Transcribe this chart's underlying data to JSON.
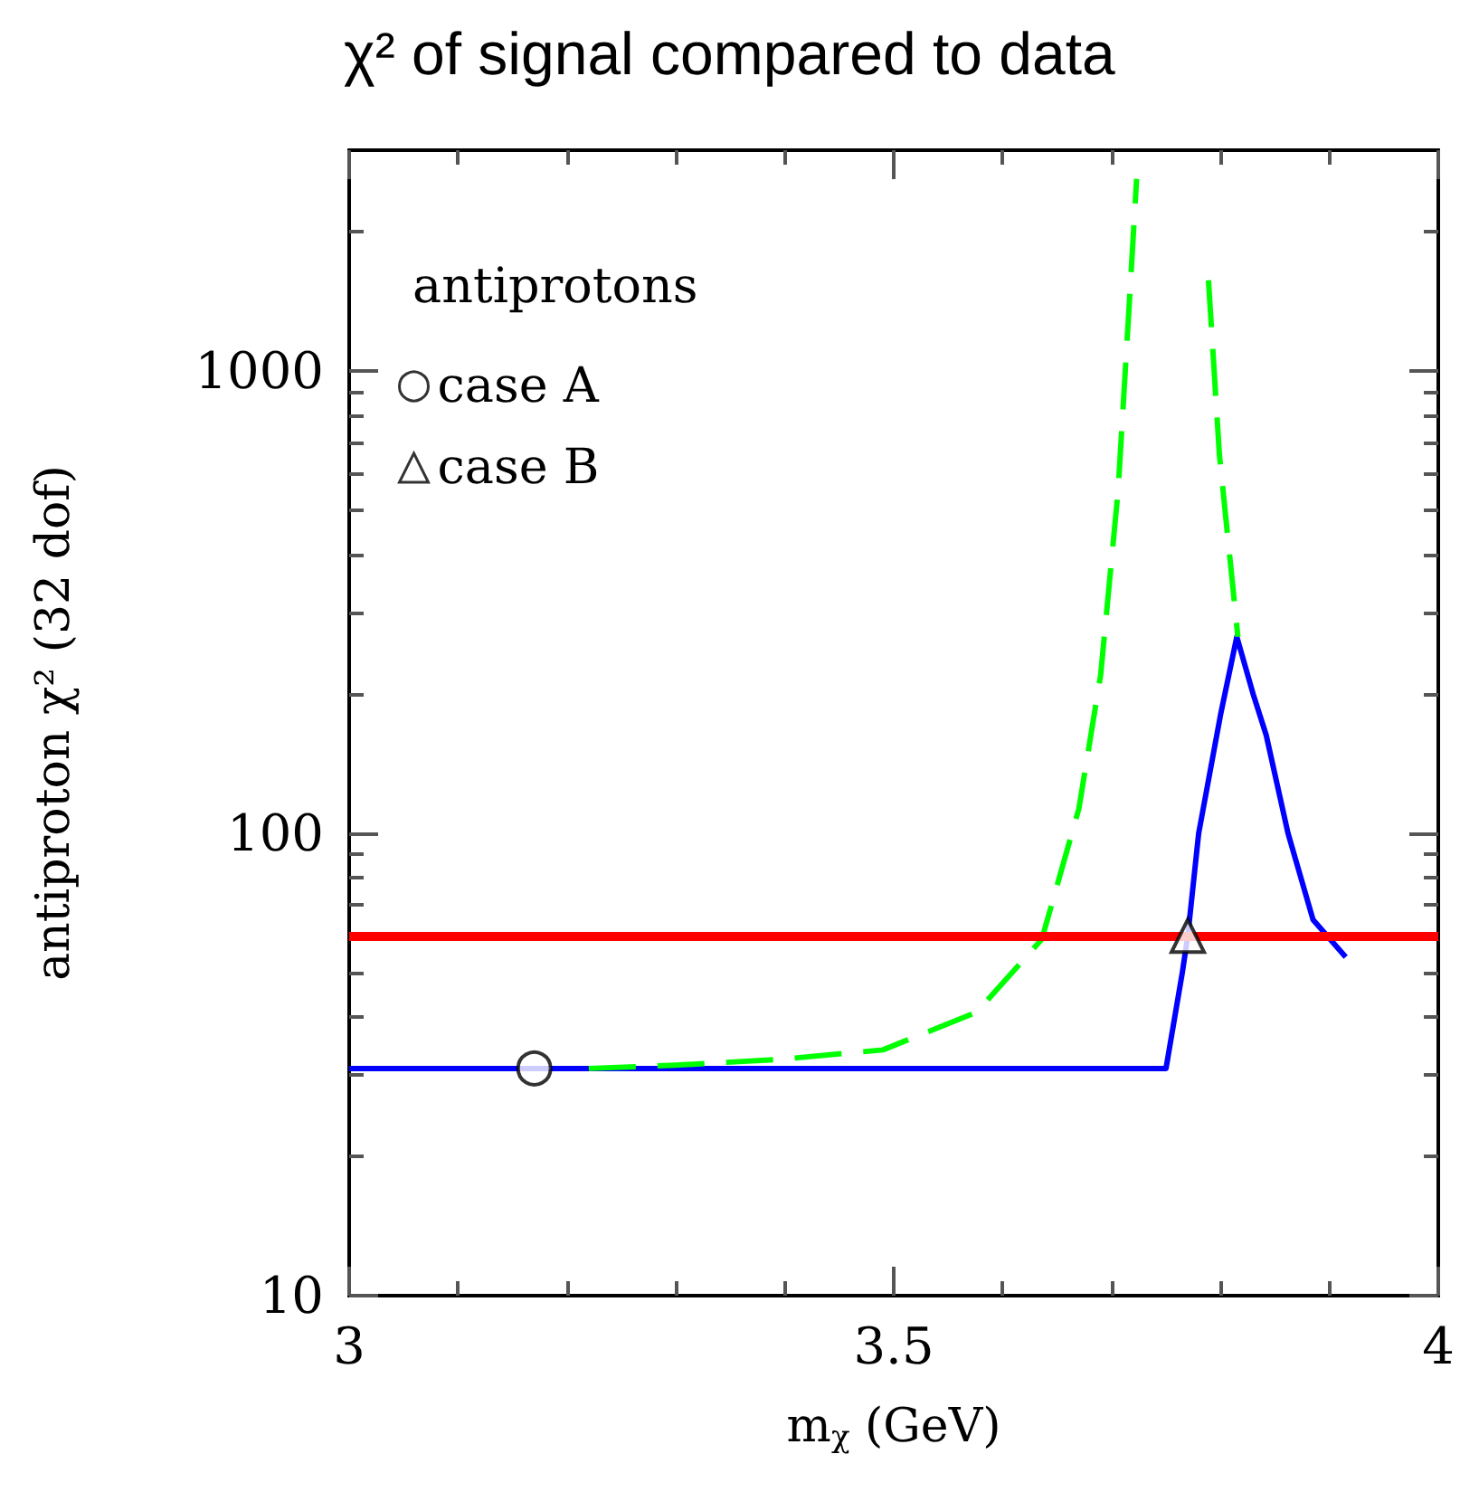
{
  "chart_data": {
    "type": "line",
    "title": "χ² of signal compared to data",
    "xlabel": "m$_{χ}$ (GeV)",
    "ylabel": "antiproton χ² (32 dof)",
    "legend_title": "antiprotons",
    "legend": "top left",
    "log": "y",
    "xlim": [
      3,
      4
    ],
    "ylim": [
      10,
      3000
    ],
    "xticks": [
      3,
      {
        "value": 3.1,
        "label": null
      },
      {
        "value": 3.2,
        "label": null
      },
      {
        "value": 3.3,
        "label": null
      },
      {
        "value": 3.4,
        "label": null
      },
      3.5,
      {
        "value": 3.6,
        "label": null
      },
      {
        "value": 3.7,
        "label": null
      },
      {
        "value": 3.8,
        "label": null
      },
      {
        "value": 3.9,
        "label": null
      },
      4
    ],
    "yticks": [
      10,
      {
        "value": 20,
        "label": null
      },
      {
        "value": 30,
        "label": null
      },
      {
        "value": 40,
        "label": null
      },
      {
        "value": 50,
        "label": null
      },
      {
        "value": 60,
        "label": null
      },
      {
        "value": 70,
        "label": null
      },
      {
        "value": 80,
        "label": null
      },
      {
        "value": 90,
        "label": null
      },
      100,
      {
        "value": 200,
        "label": null
      },
      {
        "value": 300,
        "label": null
      },
      {
        "value": 400,
        "label": null
      },
      {
        "value": 500,
        "label": null
      },
      {
        "value": 600,
        "label": null
      },
      {
        "value": 700,
        "label": null
      },
      {
        "value": 800,
        "label": null
      },
      {
        "value": 900,
        "label": null
      },
      1000,
      {
        "value": 2000,
        "label": null
      }
    ],
    "series": [
      {
        "type": "line",
        "color": "#0000ff",
        "marker": "none",
        "line_style": "solid",
        "x": [
          3,
          3.75,
          3.765,
          3.77,
          3.78,
          3.8,
          3.815,
          3.83,
          3.842,
          3.862,
          3.885,
          3.915
        ],
        "values": [
          31,
          31,
          50,
          60,
          100,
          180,
          266,
          200,
          163,
          100,
          65,
          54
        ]
      },
      {
        "type": "line",
        "color": "#00ff00",
        "marker": "none",
        "line_style": "dashed",
        "x": [
          3.22,
          3.3,
          3.4,
          3.49,
          3.576,
          3.636,
          3.67,
          3.69,
          3.706,
          3.716,
          3.723,
          3.75,
          3.789,
          3.799,
          3.816
        ],
        "values": [
          31,
          31.5,
          32.5,
          34,
          41,
          59,
          113,
          220,
          550,
          1360,
          2600,
          null,
          1570,
          660,
          266
        ]
      },
      {
        "type": "scatter",
        "name": "case A",
        "color": "#000000",
        "marker": "circle",
        "x": [
          3.17
        ],
        "values": [
          31
        ]
      },
      {
        "type": "scatter",
        "name": "case B",
        "color": "#000000",
        "marker": "triangle",
        "x": [
          3.77
        ],
        "values": [
          60
        ]
      }
    ],
    "ref_lines": [
      {
        "axis": "y",
        "value": 60,
        "color": "#ff0000"
      }
    ]
  }
}
